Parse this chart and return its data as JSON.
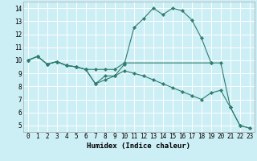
{
  "xlabel": "Humidex (Indice chaleur)",
  "bg_color": "#cceef5",
  "grid_color": "#b0dde8",
  "line_color": "#2e7d6e",
  "x_ticks": [
    0,
    1,
    2,
    3,
    4,
    5,
    6,
    7,
    8,
    9,
    10,
    11,
    12,
    13,
    14,
    15,
    16,
    17,
    18,
    19,
    20,
    21,
    22,
    23
  ],
  "y_ticks": [
    5,
    6,
    7,
    8,
    9,
    10,
    11,
    12,
    13,
    14
  ],
  "xlim": [
    -0.5,
    23.5
  ],
  "ylim": [
    4.5,
    14.5
  ],
  "line1_x": [
    0,
    1,
    2,
    3,
    4,
    5,
    6,
    7,
    8,
    9,
    10,
    19
  ],
  "line1_y": [
    10.0,
    10.3,
    9.7,
    9.9,
    9.6,
    9.5,
    9.3,
    9.3,
    9.3,
    9.3,
    9.8,
    9.8
  ],
  "line2_x": [
    0,
    1,
    2,
    3,
    4,
    5,
    6,
    7,
    8,
    9,
    10,
    11,
    12,
    13,
    14,
    15,
    16,
    17,
    18,
    19,
    20,
    21,
    22,
    23
  ],
  "line2_y": [
    10.0,
    10.3,
    9.7,
    9.9,
    9.6,
    9.5,
    9.3,
    8.2,
    8.8,
    8.8,
    9.7,
    12.5,
    13.2,
    14.0,
    13.5,
    14.0,
    13.8,
    13.1,
    11.7,
    9.8,
    9.8,
    6.4,
    5.0,
    4.8
  ],
  "line3_x": [
    0,
    1,
    2,
    3,
    4,
    5,
    6,
    7,
    8,
    9,
    10,
    11,
    12,
    13,
    14,
    15,
    16,
    17,
    18,
    19,
    20,
    21,
    22,
    23
  ],
  "line3_y": [
    10.0,
    10.3,
    9.7,
    9.9,
    9.6,
    9.5,
    9.3,
    8.2,
    8.5,
    8.8,
    9.2,
    9.0,
    8.8,
    8.5,
    8.2,
    7.9,
    7.6,
    7.3,
    7.0,
    7.5,
    7.7,
    6.4,
    5.0,
    4.8
  ],
  "tick_fontsize": 5.5,
  "label_fontsize": 6.5
}
